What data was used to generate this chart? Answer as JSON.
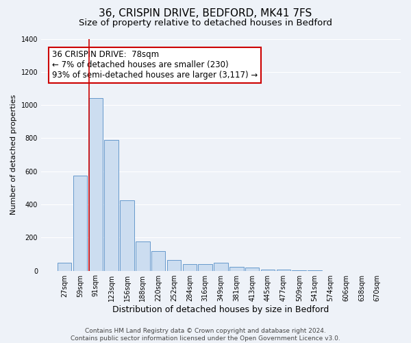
{
  "title": "36, CRISPIN DRIVE, BEDFORD, MK41 7FS",
  "subtitle": "Size of property relative to detached houses in Bedford",
  "xlabel": "Distribution of detached houses by size in Bedford",
  "ylabel": "Number of detached properties",
  "bar_labels": [
    "27sqm",
    "59sqm",
    "91sqm",
    "123sqm",
    "156sqm",
    "188sqm",
    "220sqm",
    "252sqm",
    "284sqm",
    "316sqm",
    "349sqm",
    "381sqm",
    "413sqm",
    "445sqm",
    "477sqm",
    "509sqm",
    "541sqm",
    "574sqm",
    "606sqm",
    "638sqm",
    "670sqm"
  ],
  "bar_values": [
    50,
    575,
    1040,
    790,
    425,
    178,
    120,
    65,
    38,
    38,
    48,
    25,
    18,
    8,
    5,
    3,
    2,
    0,
    0,
    0,
    0
  ],
  "bar_color": "#ccddf0",
  "bar_edge_color": "#6699cc",
  "bar_edge_width": 0.7,
  "vline_color": "#cc0000",
  "ylim": [
    0,
    1400
  ],
  "yticks": [
    0,
    200,
    400,
    600,
    800,
    1000,
    1200,
    1400
  ],
  "annotation_title": "36 CRISPIN DRIVE:  78sqm",
  "annotation_line1": "← 7% of detached houses are smaller (230)",
  "annotation_line2": "93% of semi-detached houses are larger (3,117) →",
  "annotation_box_color": "#ffffff",
  "annotation_box_edge": "#cc0000",
  "footer_line1": "Contains HM Land Registry data © Crown copyright and database right 2024.",
  "footer_line2": "Contains public sector information licensed under the Open Government Licence v3.0.",
  "background_color": "#eef2f8",
  "grid_color": "#ffffff",
  "title_fontsize": 11,
  "subtitle_fontsize": 9.5,
  "xlabel_fontsize": 9,
  "ylabel_fontsize": 8,
  "tick_fontsize": 7,
  "annotation_fontsize": 8.5,
  "footer_fontsize": 6.5
}
